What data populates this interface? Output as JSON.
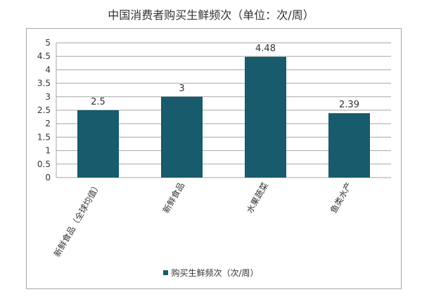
{
  "chart_data": {
    "type": "bar",
    "title": "中国消费者购买生鲜频次（单位：次/周）",
    "categories": [
      "新鲜食品（全球均值）",
      "新鲜食品",
      "水果蔬菜",
      "鱼类水产"
    ],
    "series": [
      {
        "name": "购买生鲜频次（次/周）",
        "values": [
          2.5,
          3,
          4.48,
          2.39
        ]
      }
    ],
    "data_labels": [
      "2.5",
      "3",
      "4.48",
      "2.39"
    ],
    "yticks": [
      "0",
      "0.5",
      "1",
      "1.5",
      "2",
      "2.5",
      "3",
      "3.5",
      "4",
      "4.5",
      "5"
    ],
    "ylim": [
      0,
      5
    ],
    "xlabel": "",
    "ylabel": "",
    "grid": true,
    "legend": "bottom",
    "colors": {
      "bar": "#175b6c",
      "grid": "#a6a6a6",
      "axis": "#a6a6a6"
    }
  }
}
